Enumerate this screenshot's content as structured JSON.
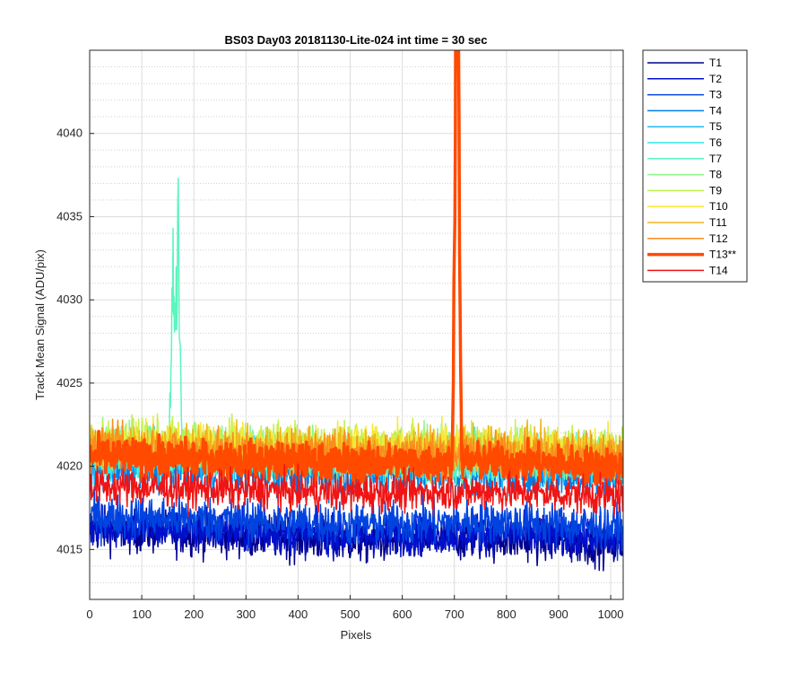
{
  "chart_data": {
    "type": "line",
    "title": "BS03 Day03 20181130-Lite-024 int time = 30 sec",
    "xlabel": "Pixels",
    "ylabel": "Track Mean Signal (ADU/pix)",
    "xlim": [
      0,
      1024
    ],
    "ylim": [
      4012,
      4045
    ],
    "xticks": [
      0,
      100,
      200,
      300,
      400,
      500,
      600,
      700,
      800,
      900,
      1000
    ],
    "yticks": [
      4015,
      4020,
      4025,
      4030,
      4035,
      4040
    ],
    "yticklabels": [
      "4015",
      "4020",
      "4025",
      "4030",
      "4035",
      "4040"
    ],
    "grid": true,
    "minor_grid_y": true,
    "legend_position": "outside-top-right",
    "series": [
      {
        "name": "T1",
        "color": "#00008F",
        "lw": 1.5,
        "mean": 4015.8,
        "spread": 1.3,
        "x_sample": [
          0,
          256,
          512,
          768,
          1024
        ],
        "y_sample": [
          4016.2,
          4015.9,
          4015.5,
          4015.7,
          4015.3
        ]
      },
      {
        "name": "T2",
        "color": "#0011CC",
        "lw": 1.5,
        "mean": 4016.0,
        "spread": 1.2,
        "x_sample": [
          0,
          256,
          512,
          768,
          1024
        ],
        "y_sample": [
          4016.4,
          4016.1,
          4015.8,
          4016.0,
          4015.6
        ]
      },
      {
        "name": "T3",
        "color": "#0044E0",
        "lw": 1.5,
        "mean": 4016.7,
        "spread": 1.3,
        "x_sample": [
          0,
          256,
          512,
          768,
          1024
        ],
        "y_sample": [
          4017.0,
          4016.8,
          4016.5,
          4016.7,
          4016.3
        ]
      },
      {
        "name": "T4",
        "color": "#007EE8",
        "lw": 1.5,
        "mean": 4019.6,
        "spread": 1.3,
        "x_sample": [
          0,
          256,
          512,
          768,
          1024
        ],
        "y_sample": [
          4019.8,
          4019.7,
          4019.5,
          4019.6,
          4019.3
        ]
      },
      {
        "name": "T5",
        "color": "#1FB8F5",
        "lw": 1.5,
        "mean": 4020.3,
        "spread": 1.3,
        "x_sample": [
          0,
          256,
          512,
          768,
          1024
        ],
        "y_sample": [
          4020.6,
          4020.4,
          4020.2,
          4020.3,
          4020.0
        ]
      },
      {
        "name": "T6",
        "color": "#30E6E6",
        "lw": 1.5,
        "mean": 4020.6,
        "spread": 1.3,
        "x_sample": [
          0,
          256,
          512,
          768,
          1024
        ],
        "y_sample": [
          4020.9,
          4020.7,
          4020.5,
          4020.6,
          4020.3
        ]
      },
      {
        "name": "T7",
        "color": "#5CF5BE",
        "lw": 1.5,
        "mean": 4020.5,
        "spread": 1.3,
        "x_sample": [
          0,
          160,
          170,
          256,
          512,
          1024
        ],
        "y_sample": [
          4020.8,
          4034.3,
          4037.3,
          4020.6,
          4020.4,
          4020.2
        ]
      },
      {
        "name": "T8",
        "color": "#8AF58A",
        "lw": 1.5,
        "mean": 4021.0,
        "spread": 1.3,
        "x_sample": [
          0,
          256,
          512,
          768,
          1024
        ],
        "y_sample": [
          4021.3,
          4021.1,
          4020.9,
          4021.0,
          4020.7
        ]
      },
      {
        "name": "T9",
        "color": "#C2F04C",
        "lw": 1.5,
        "mean": 4021.3,
        "spread": 1.3,
        "x_sample": [
          0,
          256,
          512,
          768,
          1024
        ],
        "y_sample": [
          4021.6,
          4021.4,
          4021.2,
          4021.3,
          4021.0
        ]
      },
      {
        "name": "T10",
        "color": "#F5E938",
        "lw": 1.5,
        "mean": 4021.2,
        "spread": 1.3,
        "x_sample": [
          0,
          256,
          512,
          768,
          1024
        ],
        "y_sample": [
          4021.5,
          4021.3,
          4021.1,
          4021.2,
          4020.9
        ]
      },
      {
        "name": "T11",
        "color": "#F0B41E",
        "lw": 1.5,
        "mean": 4021.0,
        "spread": 1.3,
        "x_sample": [
          0,
          256,
          512,
          768,
          1024
        ],
        "y_sample": [
          4021.3,
          4021.1,
          4020.9,
          4021.0,
          4020.7
        ]
      },
      {
        "name": "T12",
        "color": "#FA8C1E",
        "lw": 1.5,
        "mean": 4020.8,
        "spread": 1.3,
        "x_sample": [
          0,
          256,
          512,
          768,
          1024
        ],
        "y_sample": [
          4021.1,
          4020.9,
          4020.7,
          4020.8,
          4020.5
        ]
      },
      {
        "name": "T13**",
        "color": "#FF4A00",
        "lw": 3.5,
        "mean": 4020.3,
        "spread": 1.1,
        "x_sample": [
          0,
          256,
          512,
          704,
          706,
          768,
          1024
        ],
        "y_sample": [
          4020.6,
          4020.4,
          4020.2,
          4045.0,
          4045.0,
          4020.3,
          4020.0
        ]
      },
      {
        "name": "T14",
        "color": "#F01414",
        "lw": 1.5,
        "mean": 4018.5,
        "spread": 1.1,
        "x_sample": [
          0,
          256,
          512,
          768,
          1024
        ],
        "y_sample": [
          4018.8,
          4018.6,
          4018.4,
          4018.5,
          4018.2
        ]
      }
    ]
  }
}
